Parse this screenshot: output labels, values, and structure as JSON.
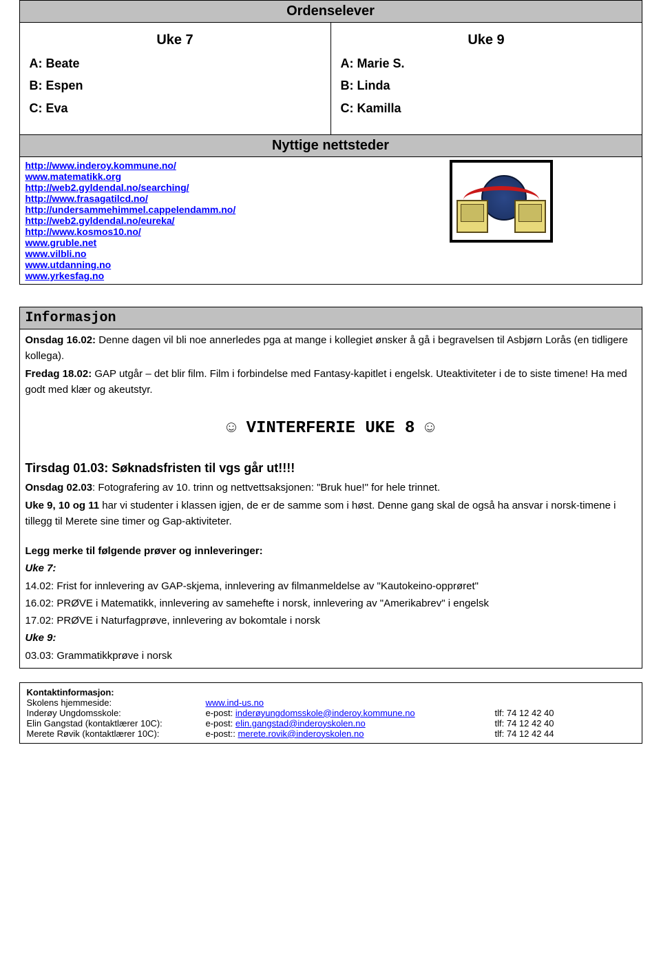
{
  "ordenselever": {
    "title": "Ordenselever",
    "week7": {
      "heading": "Uke 7",
      "students": [
        "A: Beate",
        "B: Espen",
        "C: Eva"
      ]
    },
    "week9": {
      "heading": "Uke 9",
      "students": [
        "A: Marie S.",
        "B: Linda",
        "C: Kamilla"
      ]
    }
  },
  "nettsteder": {
    "title": "Nyttige nettsteder",
    "links": [
      "http://www.inderoy.kommune.no/",
      "www.matematikk.org",
      "http://web2.gyldendal.no/searching/",
      "http://www.frasagatilcd.no/",
      "http://undersammehimmel.cappelendamm.no/",
      "http://web2.gyldendal.no/eureka/",
      "http://www.kosmos10.no/",
      "www.gruble.net",
      "www.vilbli.no",
      "www.utdanning.no",
      "www.yrkesfag.no"
    ]
  },
  "informasjon": {
    "title": "Informasjon",
    "onsdag1602_label": "Onsdag 16.02:",
    "onsdag1602_text": " Denne dagen vil bli noe annerledes pga at mange i kollegiet ønsker å gå i begravelsen til Asbjørn Lorås (en tidligere kollega).",
    "fredag1802_label": "Fredag 18.02:",
    "fredag1802_text": " GAP utgår – det blir film. Film i forbindelse med Fantasy-kapitlet i engelsk. Uteaktiviteter i de to siste timene! Ha med godt med klær og akeutstyr.",
    "vinterferie": "☺ VINTERFERIE UKE 8 ☺",
    "tirsdag0103": "Tirsdag 01.03: Søknadsfristen til vgs går ut!!!!",
    "onsdag0203_label": "Onsdag 02.03",
    "onsdag0203_text": ": Fotografering av 10. trinn og nettvettsaksjonen: \"Bruk hue!\" for hele trinnet.",
    "uke9_10_11_label": "Uke 9, 10 og 11",
    "uke9_10_11_text": " har vi studenter i klassen igjen, de er de samme som i høst. Denne gang skal de også ha ansvar i norsk-timene i tillegg til Merete sine timer og Gap-aktiviteter.",
    "legg_merke": "Legg merke til følgende prøver og innleveringer:",
    "uke7_label": "Uke 7:",
    "uke7_items": [
      "14.02: Frist for innlevering av GAP-skjema, innlevering av filmanmeldelse av \"Kautokeino-opprøret\"",
      "16.02: PRØVE i Matematikk, innlevering av samehefte i norsk, innlevering av \"Amerikabrev\" i engelsk",
      "17.02: PRØVE i Naturfagprøve, innlevering av bokomtale i norsk"
    ],
    "uke9_label": "Uke 9:",
    "uke9_items": [
      "03.03: Grammatikkprøve i norsk"
    ]
  },
  "kontakt": {
    "title": "Kontaktinformasjon:",
    "rows": [
      {
        "label": "Skolens hjemmeside:",
        "email_prefix": "",
        "email": "www.ind-us.no",
        "phone": ""
      },
      {
        "label": "Inderøy Ungdomsskole:",
        "email_prefix": "e-post: ",
        "email": "inderøyungdomsskole@inderoy.kommune.no",
        "phone": "tlf: 74 12 42 40"
      },
      {
        "label": "Elin Gangstad (kontaktlærer 10C):",
        "email_prefix": " e-post: ",
        "email": "elin.gangstad@inderoyskolen.no",
        "phone": "tlf: 74 12 42 40"
      },
      {
        "label": "Merete Røvik (kontaktlærer 10C):",
        "email_prefix": "e-post:: ",
        "email": "merete.rovik@inderoyskolen.no",
        "phone": "tlf: 74 12 42 44"
      }
    ]
  },
  "colors": {
    "header_bg": "#c0c0c0",
    "link_color": "#0000ff",
    "border_color": "#000000",
    "background": "#ffffff"
  }
}
